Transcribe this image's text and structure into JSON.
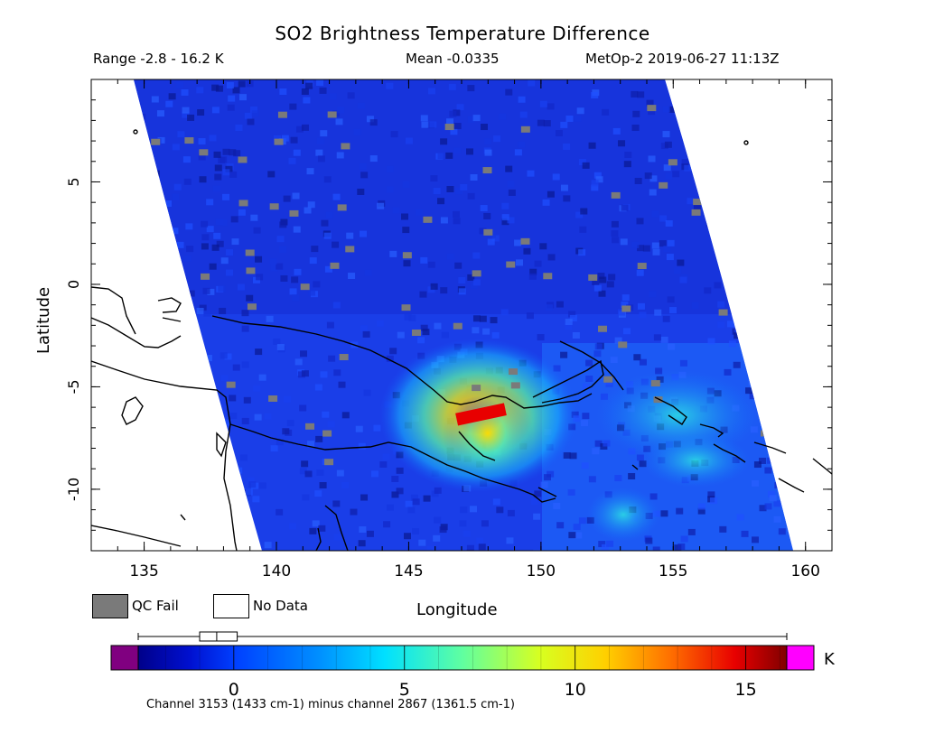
{
  "header": {
    "title": "SO2 Brightness Temperature Difference",
    "range": "Range -2.8 - 16.2 K",
    "mean": "Mean -0.0335",
    "satellite_time": "MetOp-2 2019-06-27 11:13Z"
  },
  "axes": {
    "xlabel": "Longitude",
    "ylabel": "Latitude",
    "x_ticks": [
      135,
      140,
      145,
      150,
      155,
      160
    ],
    "y_ticks": [
      5,
      0,
      -5,
      -10
    ],
    "x_range": [
      133,
      161
    ],
    "y_range": [
      -13,
      10
    ]
  },
  "legend": {
    "qc_fail": "QC Fail",
    "no_data": "No Data",
    "qc_color": "#7a7a7a"
  },
  "colorbar": {
    "unit": "K",
    "ticks": [
      0,
      5,
      10,
      15
    ],
    "min": -2.8,
    "max": 16.2,
    "under_color": "#800080",
    "over_color": "#ff00ff",
    "boxplot": {
      "min": -2.8,
      "q1": -1.0,
      "median": -0.5,
      "q3": 0.1,
      "max": 16.2
    },
    "note": "Channel 3153 (1433 cm-1) minus channel 2867 (1361.5 cm-1)"
  },
  "plume": {
    "center_lon": 147.8,
    "center_lat": -6.7,
    "peak_value_K": 16.2
  },
  "colors": {
    "background_map": "#ffffff",
    "coastline": "#000000"
  }
}
